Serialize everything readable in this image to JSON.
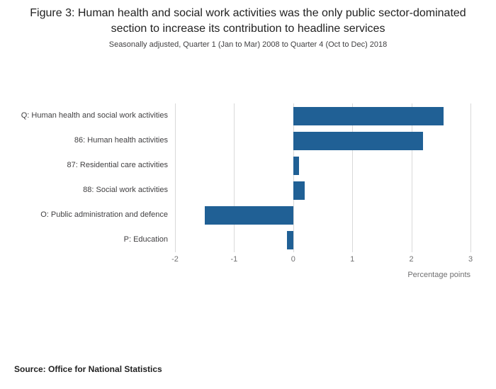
{
  "title": "Figure 3: Human health and social work activities was the only public sector-dominated section to increase its contribution to headline services",
  "subtitle": "Seasonally adjusted, Quarter 1 (Jan to Mar) 2008 to Quarter 4 (Oct to Dec) 2018",
  "source": "Source: Office for National Statistics",
  "chart_data": {
    "type": "bar",
    "orientation": "horizontal",
    "categories": [
      "Q: Human health and social work activities",
      "86: Human health activities",
      "87: Residential care activities",
      "88: Social work activities",
      "O: Public administration and defence",
      "P: Education"
    ],
    "values": [
      2.55,
      2.2,
      0.1,
      0.2,
      -1.5,
      -0.1
    ],
    "title": "Figure 3: Human health and social work activities was the only public sector-dominated section to increase its contribution to headline services",
    "xlabel": "Percentage points",
    "ylabel": "",
    "xlim": [
      -2,
      3
    ],
    "xticks": [
      -2,
      -1,
      0,
      1,
      2,
      3
    ],
    "grid": true,
    "legend": false,
    "bar_color": "#206095",
    "gridline_color": "#d9d9d9"
  }
}
